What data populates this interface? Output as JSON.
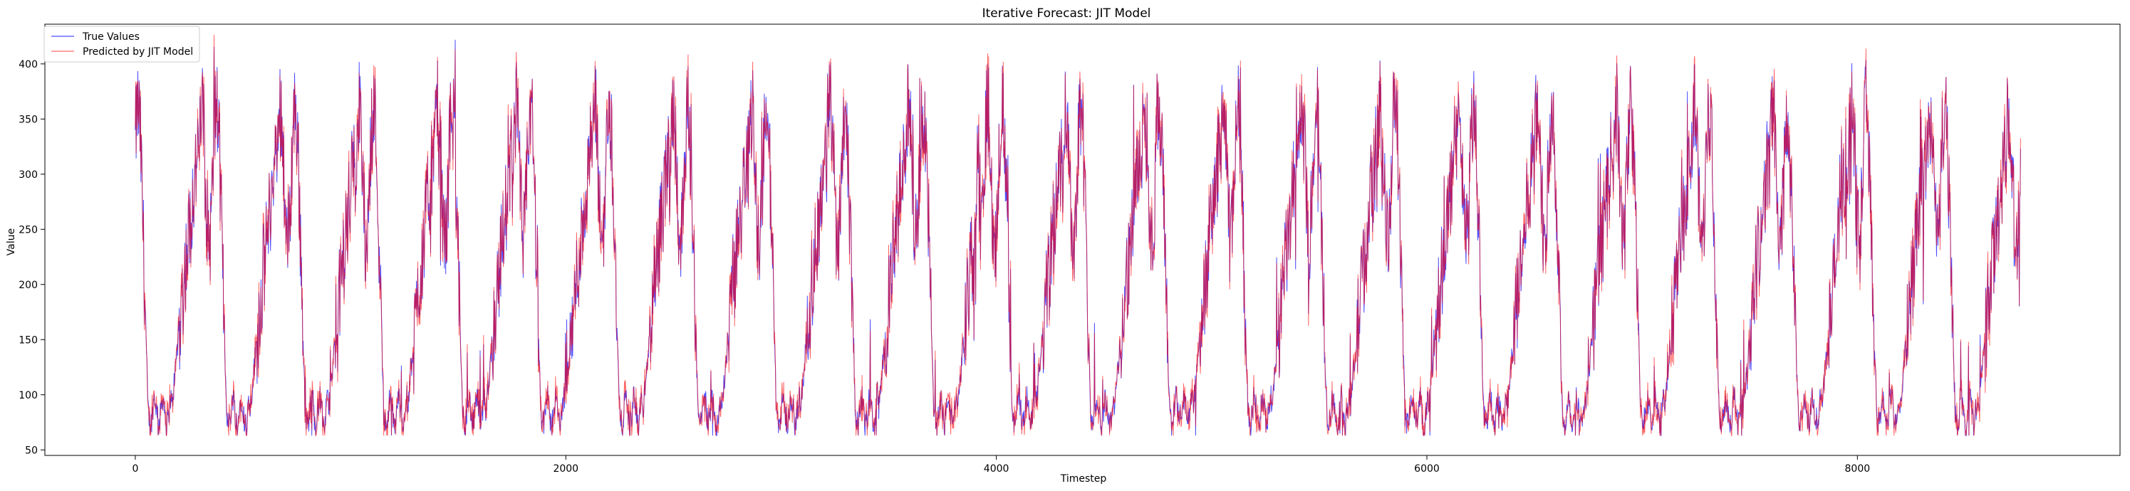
{
  "chart_data": {
    "type": "line",
    "title": "Iterative Forecast: JIT Model",
    "xlabel": "Timestep",
    "ylabel": "Value",
    "xlim": [
      -420,
      9220
    ],
    "ylim": [
      45,
      436
    ],
    "xticks": [
      0,
      2000,
      4000,
      6000,
      8000
    ],
    "yticks": [
      50,
      100,
      150,
      200,
      250,
      300,
      350,
      400
    ],
    "grid": false,
    "legend_position": "top-left",
    "x_range": [
      0,
      8759
    ],
    "cycles": 24,
    "series": [
      {
        "name": "True Values",
        "color": "#0000ff",
        "opacity": 0.7
      },
      {
        "name": "Predicted by JIT Model",
        "color": "#ff0000",
        "opacity": 0.6
      }
    ]
  }
}
